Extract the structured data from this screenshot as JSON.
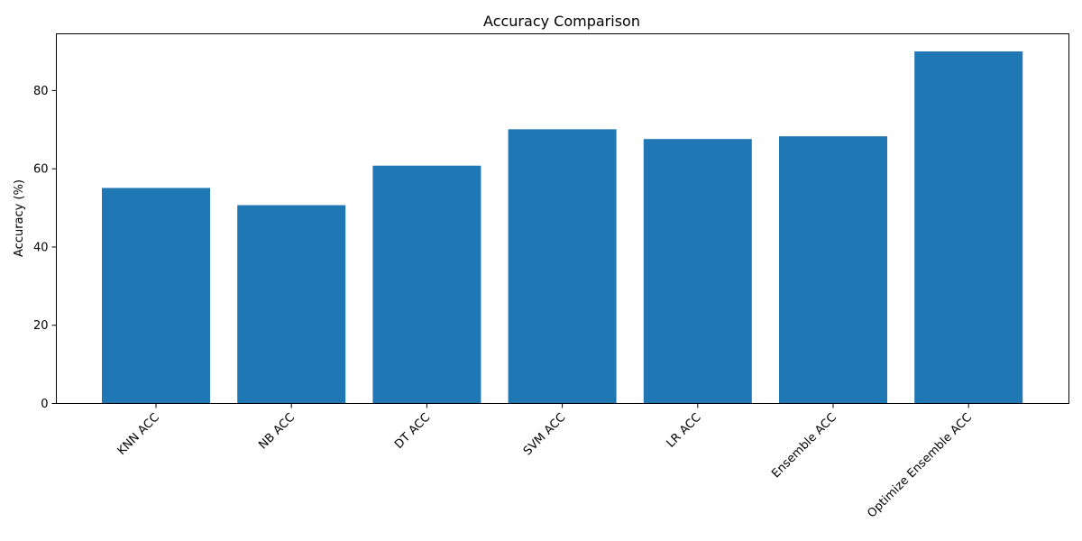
{
  "chart_data": {
    "type": "bar",
    "title": "Accuracy Comparison",
    "xlabel": "",
    "ylabel": "Accuracy (%)",
    "categories": [
      "KNN ACC",
      "NB ACC",
      "DT ACC",
      "SVM ACC",
      "LR ACC",
      "Ensemble ACC",
      "Optimize Ensemble ACC"
    ],
    "values": [
      55.1,
      50.7,
      60.8,
      70.1,
      67.6,
      68.3,
      90.0
    ],
    "ylim": [
      0,
      94.5
    ],
    "yticks": [
      0,
      20,
      40,
      60,
      80
    ],
    "bar_color": "#1f77b4",
    "grid": false,
    "legend": false
  }
}
